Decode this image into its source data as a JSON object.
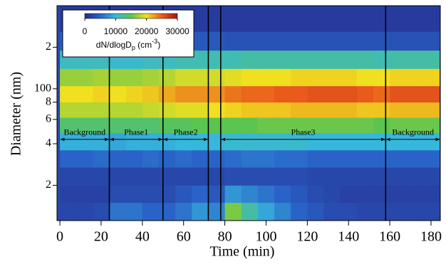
{
  "chart_data": {
    "type": "heatmap",
    "xlabel": "Time (min)",
    "ylabel": "Diameter (nm)",
    "xlim": [
      -1.4,
      184.5
    ],
    "xticks": [
      0,
      20,
      40,
      60,
      80,
      100,
      120,
      140,
      160,
      180
    ],
    "ylim": [
      11.1,
      400
    ],
    "ylog": true,
    "yticks": [
      {
        "value": 200,
        "label": "2"
      },
      100,
      {
        "value": 80,
        "label": "8"
      },
      {
        "value": 60,
        "label": "6"
      },
      {
        "value": 40,
        "label": "4"
      },
      {
        "value": 20,
        "label": "2"
      }
    ],
    "xbins": [
      0,
      8,
      16,
      24,
      32,
      40,
      48,
      56,
      64,
      72,
      80,
      88,
      96,
      104,
      112,
      120,
      128,
      136,
      144,
      152,
      160,
      168,
      176,
      184
    ],
    "ybins": [
      11.1,
      15,
      20,
      27,
      36,
      48,
      62,
      80,
      105,
      140,
      190,
      260,
      400
    ],
    "z": [
      [
        2500,
        2500,
        3000,
        6000,
        6000,
        5000,
        5000,
        6000,
        8000,
        7000,
        16000,
        12000,
        9000,
        7000,
        5000,
        4000,
        3000,
        3000,
        2500,
        2500,
        2500,
        2500,
        2500
      ],
      [
        2000,
        2000,
        2000,
        3000,
        3000,
        3000,
        3000,
        4000,
        5000,
        4000,
        8000,
        7000,
        6000,
        5000,
        4000,
        3000,
        2500,
        2000,
        2000,
        2000,
        2000,
        2000,
        2000
      ],
      [
        2500,
        2500,
        2500,
        2500,
        2500,
        2500,
        2500,
        2500,
        2500,
        2500,
        3000,
        3000,
        3000,
        3000,
        3000,
        2500,
        2500,
        2500,
        2500,
        2500,
        2500,
        2500,
        2500
      ],
      [
        5000,
        5000,
        5500,
        5000,
        5000,
        5500,
        5000,
        5500,
        5000,
        5000,
        5500,
        6000,
        6000,
        5500,
        5500,
        5000,
        5000,
        5000,
        5000,
        5000,
        5000,
        5000,
        5000
      ],
      [
        9500,
        9500,
        9500,
        9000,
        9500,
        9500,
        9500,
        10000,
        10000,
        10000,
        10500,
        10500,
        10500,
        10500,
        10500,
        10000,
        10000,
        10000,
        10000,
        10000,
        10000,
        10000,
        10000
      ],
      [
        14000,
        14000,
        14000,
        14000,
        14000,
        14000,
        14500,
        14500,
        15000,
        15000,
        15000,
        15000,
        15500,
        15500,
        15500,
        15500,
        15500,
        15500,
        15500,
        15000,
        15500,
        15500,
        15500
      ],
      [
        18000,
        18000,
        18000,
        18000,
        18000,
        18500,
        19000,
        19500,
        19500,
        20000,
        20500,
        21000,
        21000,
        21000,
        21500,
        21500,
        21500,
        21500,
        21000,
        21000,
        21500,
        21500,
        21500
      ],
      [
        20000,
        20000,
        20500,
        20000,
        20500,
        21000,
        22000,
        23000,
        23000,
        23000,
        24000,
        24500,
        24500,
        25000,
        25000,
        25500,
        25500,
        25500,
        25000,
        24500,
        25500,
        25500,
        25500
      ],
      [
        17000,
        17000,
        17500,
        17000,
        17000,
        17500,
        18000,
        19000,
        19000,
        19000,
        19500,
        20000,
        20000,
        20000,
        20500,
        20500,
        20500,
        20500,
        20000,
        20000,
        20500,
        20500,
        20500
      ],
      [
        11000,
        11000,
        11000,
        10500,
        10500,
        11000,
        11000,
        11500,
        11500,
        11500,
        11500,
        12000,
        12000,
        12000,
        12000,
        12000,
        12000,
        12000,
        12000,
        11500,
        12000,
        12000,
        12000
      ],
      [
        4500,
        4500,
        4500,
        4500,
        4000,
        4000,
        4000,
        4000,
        4000,
        4000,
        3500,
        3500,
        3500,
        3500,
        3500,
        3500,
        3500,
        3500,
        3500,
        3500,
        3500,
        3500,
        3500
      ],
      [
        1500,
        1500,
        1500,
        1500,
        1500,
        1500,
        1500,
        1500,
        1500,
        1500,
        1500,
        1500,
        1500,
        1500,
        1500,
        1500,
        1500,
        1500,
        1500,
        1500,
        1500,
        1500,
        1500
      ]
    ],
    "zlim": [
      0,
      30000
    ],
    "colorscale": [
      "#262a8c",
      "#2a63c8",
      "#36b8dc",
      "#5cc450",
      "#f0e020",
      "#ea5a1c",
      "#a81414"
    ],
    "colorbar_ticks": [
      0,
      10000,
      20000,
      30000
    ],
    "colorbar_label": [
      "dN/dlogD",
      "p",
      " (cm",
      "-3",
      ")"
    ],
    "vlines": [
      24,
      50,
      72,
      78,
      158
    ],
    "annotations": [
      {
        "text": "Background",
        "x": [
          0,
          24
        ],
        "y": 43
      },
      {
        "text": "Phase1",
        "x": [
          24,
          50
        ],
        "y": 43
      },
      {
        "text": "Phase2",
        "x": [
          50,
          72
        ],
        "y": 43
      },
      {
        "text": "Phase3",
        "x": [
          78,
          158
        ],
        "y": 43
      },
      {
        "text": "Background",
        "x": [
          158,
          184.5
        ],
        "y": 43
      }
    ]
  }
}
